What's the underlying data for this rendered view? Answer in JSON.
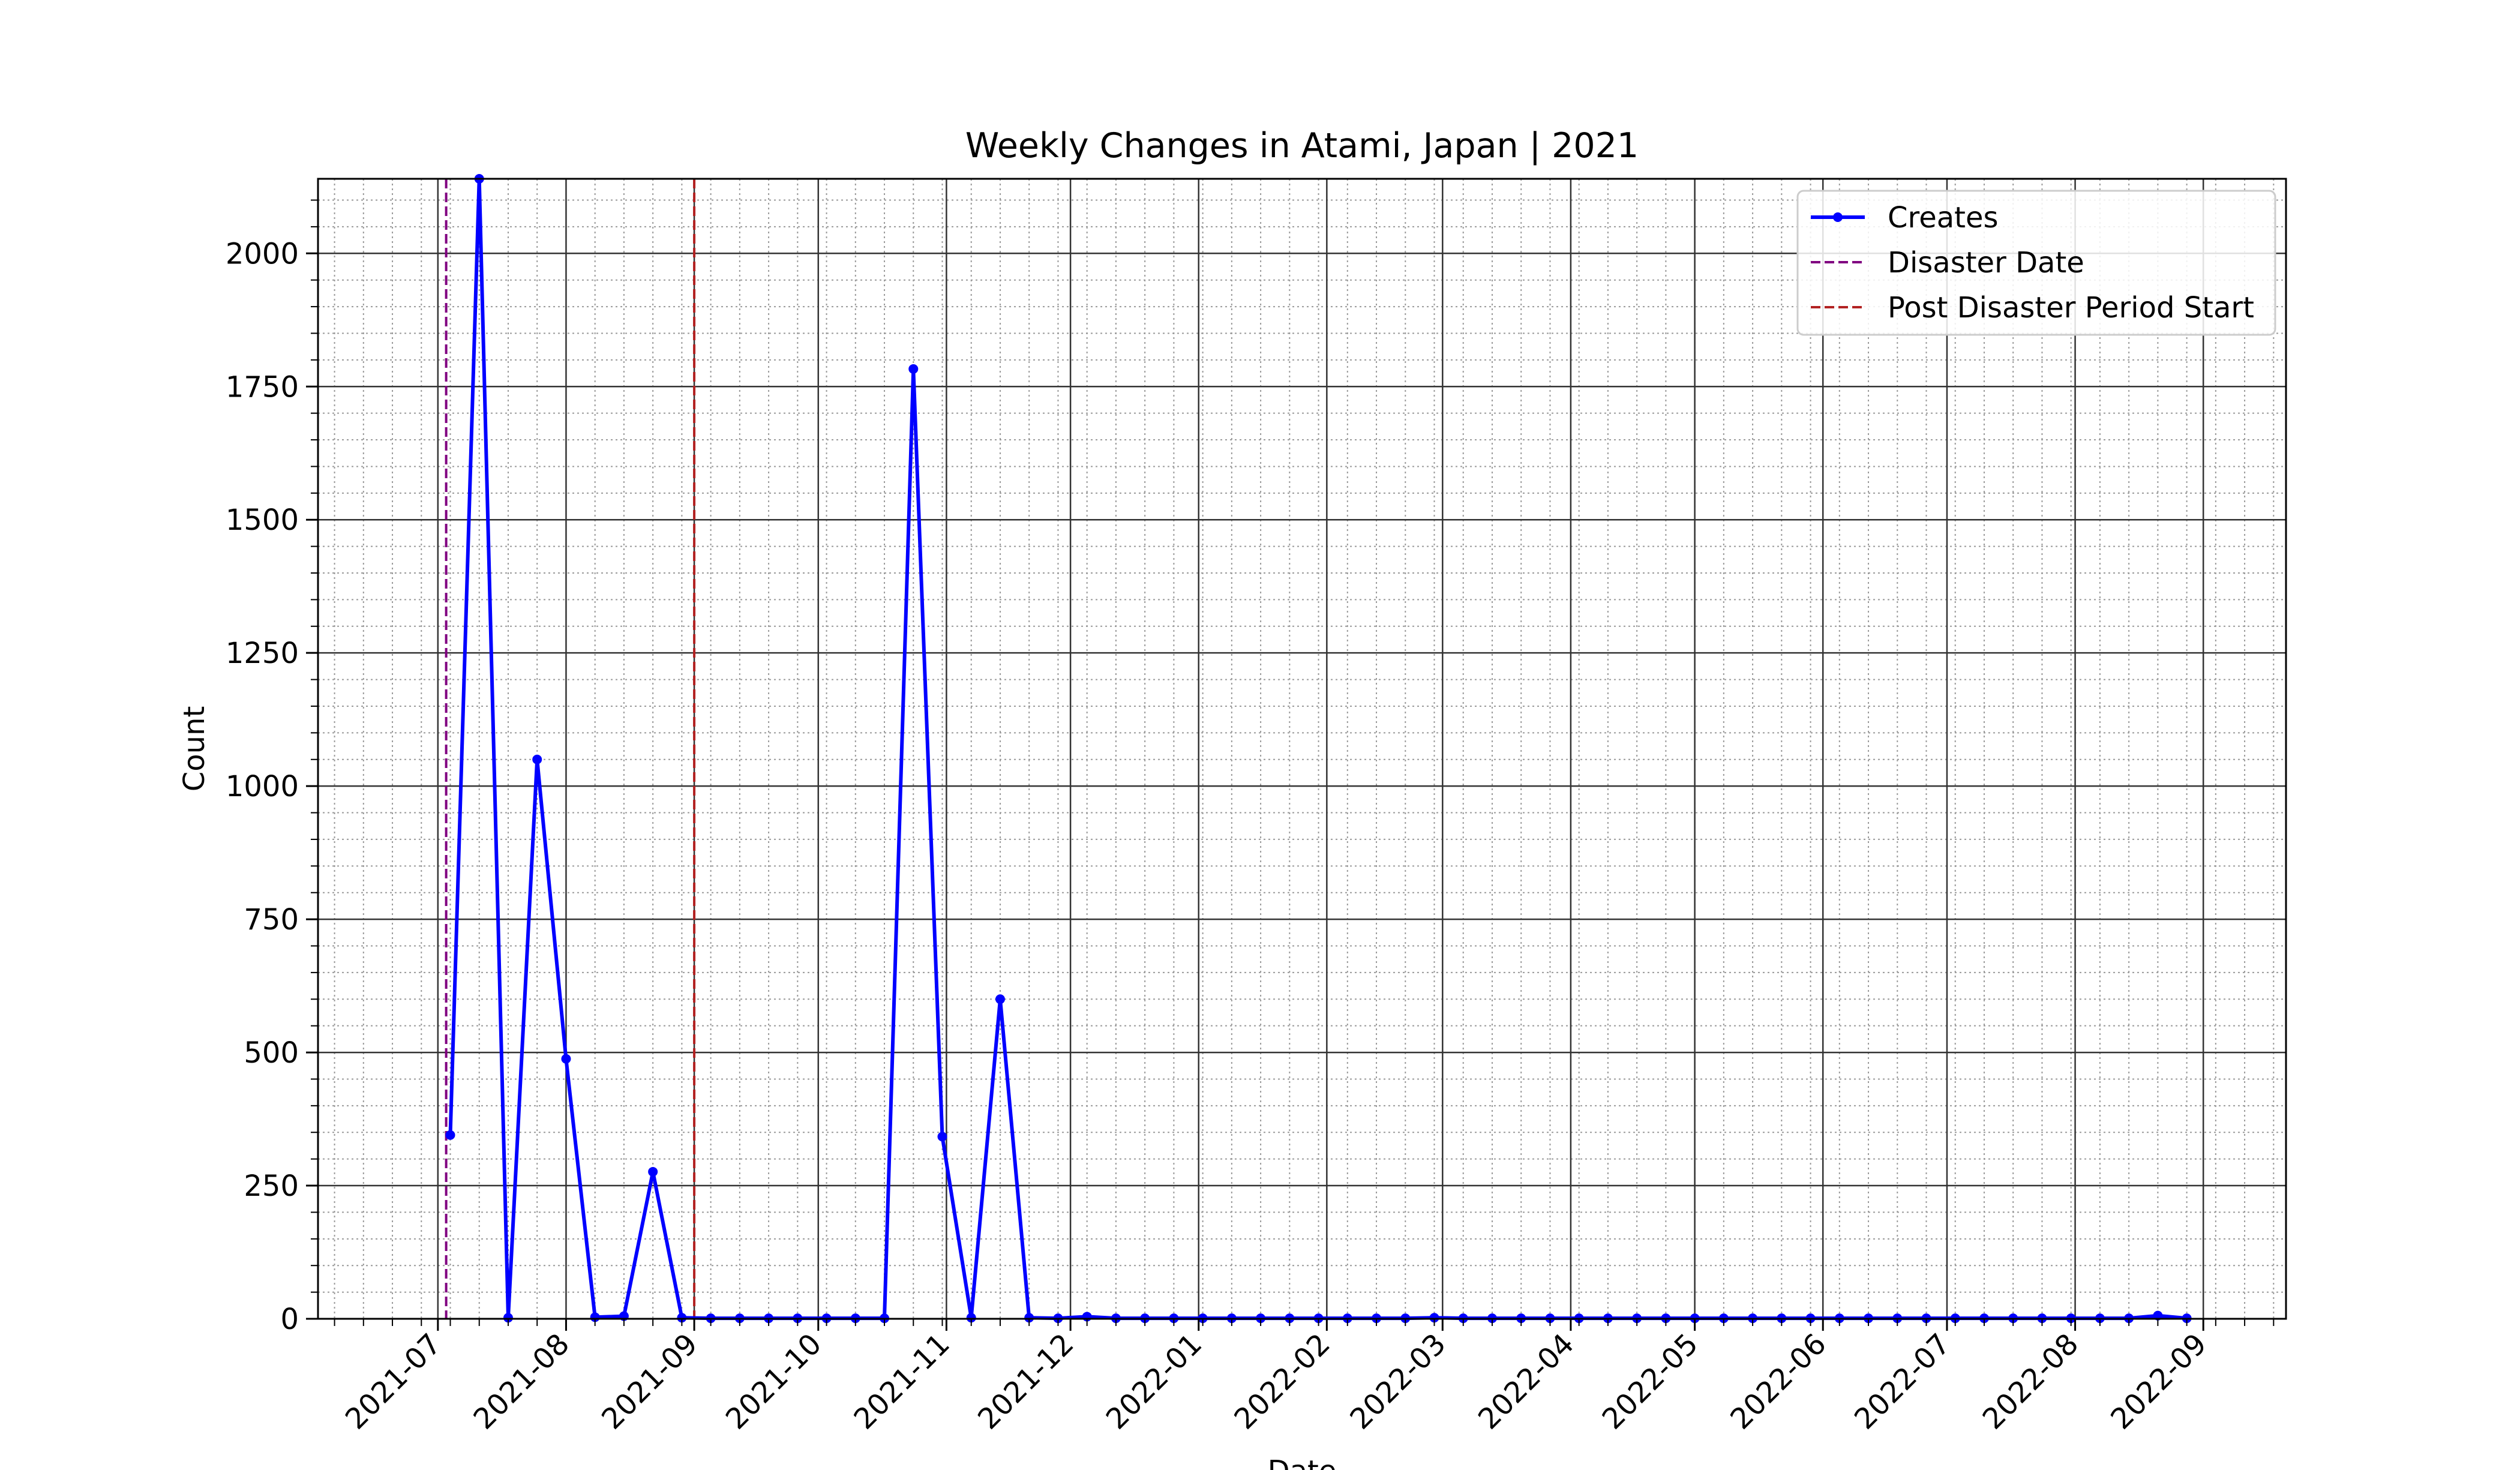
{
  "chart_data": {
    "type": "line",
    "title": "Weekly Changes in Atami, Japan | 2021",
    "xlabel": "Date",
    "ylabel": "Count",
    "xlim": [
      "2021-06-02",
      "2022-09-21"
    ],
    "ylim": [
      0,
      2140
    ],
    "x_ticks": [
      "2021-07",
      "2021-08",
      "2021-09",
      "2021-10",
      "2021-11",
      "2021-12",
      "2022-01",
      "2022-02",
      "2022-03",
      "2022-04",
      "2022-05",
      "2022-06",
      "2022-07",
      "2022-08",
      "2022-09"
    ],
    "y_ticks": [
      0,
      250,
      500,
      750,
      1000,
      1250,
      1500,
      1750,
      2000
    ],
    "grid": true,
    "legend_position": "top-right",
    "series": [
      {
        "name": "Creates",
        "color": "#0000ff",
        "marker": "circle",
        "points": [
          [
            "2021-07-04",
            345
          ],
          [
            "2021-07-11",
            2140
          ],
          [
            "2021-07-18",
            2
          ],
          [
            "2021-07-25",
            1050
          ],
          [
            "2021-08-01",
            488
          ],
          [
            "2021-08-08",
            3
          ],
          [
            "2021-08-15",
            5
          ],
          [
            "2021-08-22",
            276
          ],
          [
            "2021-08-29",
            2
          ],
          [
            "2021-09-05",
            1
          ],
          [
            "2021-09-12",
            1
          ],
          [
            "2021-09-19",
            1
          ],
          [
            "2021-09-26",
            1
          ],
          [
            "2021-10-03",
            1
          ],
          [
            "2021-10-10",
            1
          ],
          [
            "2021-10-17",
            1
          ],
          [
            "2021-10-24",
            1783
          ],
          [
            "2021-10-31",
            342
          ],
          [
            "2021-11-07",
            2
          ],
          [
            "2021-11-14",
            600
          ],
          [
            "2021-11-21",
            2
          ],
          [
            "2021-11-28",
            1
          ],
          [
            "2021-12-05",
            4
          ],
          [
            "2021-12-12",
            1
          ],
          [
            "2021-12-19",
            1
          ],
          [
            "2021-12-26",
            1
          ],
          [
            "2022-01-02",
            1
          ],
          [
            "2022-01-09",
            1
          ],
          [
            "2022-01-16",
            1
          ],
          [
            "2022-01-23",
            1
          ],
          [
            "2022-01-30",
            1
          ],
          [
            "2022-02-06",
            1
          ],
          [
            "2022-02-13",
            1
          ],
          [
            "2022-02-20",
            1
          ],
          [
            "2022-02-27",
            2
          ],
          [
            "2022-03-06",
            1
          ],
          [
            "2022-03-13",
            1
          ],
          [
            "2022-03-20",
            1
          ],
          [
            "2022-03-27",
            1
          ],
          [
            "2022-04-03",
            1
          ],
          [
            "2022-04-10",
            1
          ],
          [
            "2022-04-17",
            1
          ],
          [
            "2022-04-24",
            1
          ],
          [
            "2022-05-01",
            1
          ],
          [
            "2022-05-08",
            1
          ],
          [
            "2022-05-15",
            1
          ],
          [
            "2022-05-22",
            1
          ],
          [
            "2022-05-29",
            1
          ],
          [
            "2022-06-05",
            1
          ],
          [
            "2022-06-12",
            1
          ],
          [
            "2022-06-19",
            1
          ],
          [
            "2022-06-26",
            1
          ],
          [
            "2022-07-03",
            1
          ],
          [
            "2022-07-10",
            1
          ],
          [
            "2022-07-17",
            1
          ],
          [
            "2022-07-24",
            1
          ],
          [
            "2022-07-31",
            1
          ],
          [
            "2022-08-07",
            1
          ],
          [
            "2022-08-14",
            1
          ],
          [
            "2022-08-21",
            6
          ],
          [
            "2022-08-28",
            1
          ]
        ]
      }
    ],
    "vertical_lines": [
      {
        "name": "Disaster Date",
        "date": "2021-07-03",
        "color": "#800080",
        "style": "dashed"
      },
      {
        "name": "Post Disaster Period Start",
        "date": "2021-09-01",
        "color": "#b22222",
        "style": "dashed"
      }
    ]
  }
}
